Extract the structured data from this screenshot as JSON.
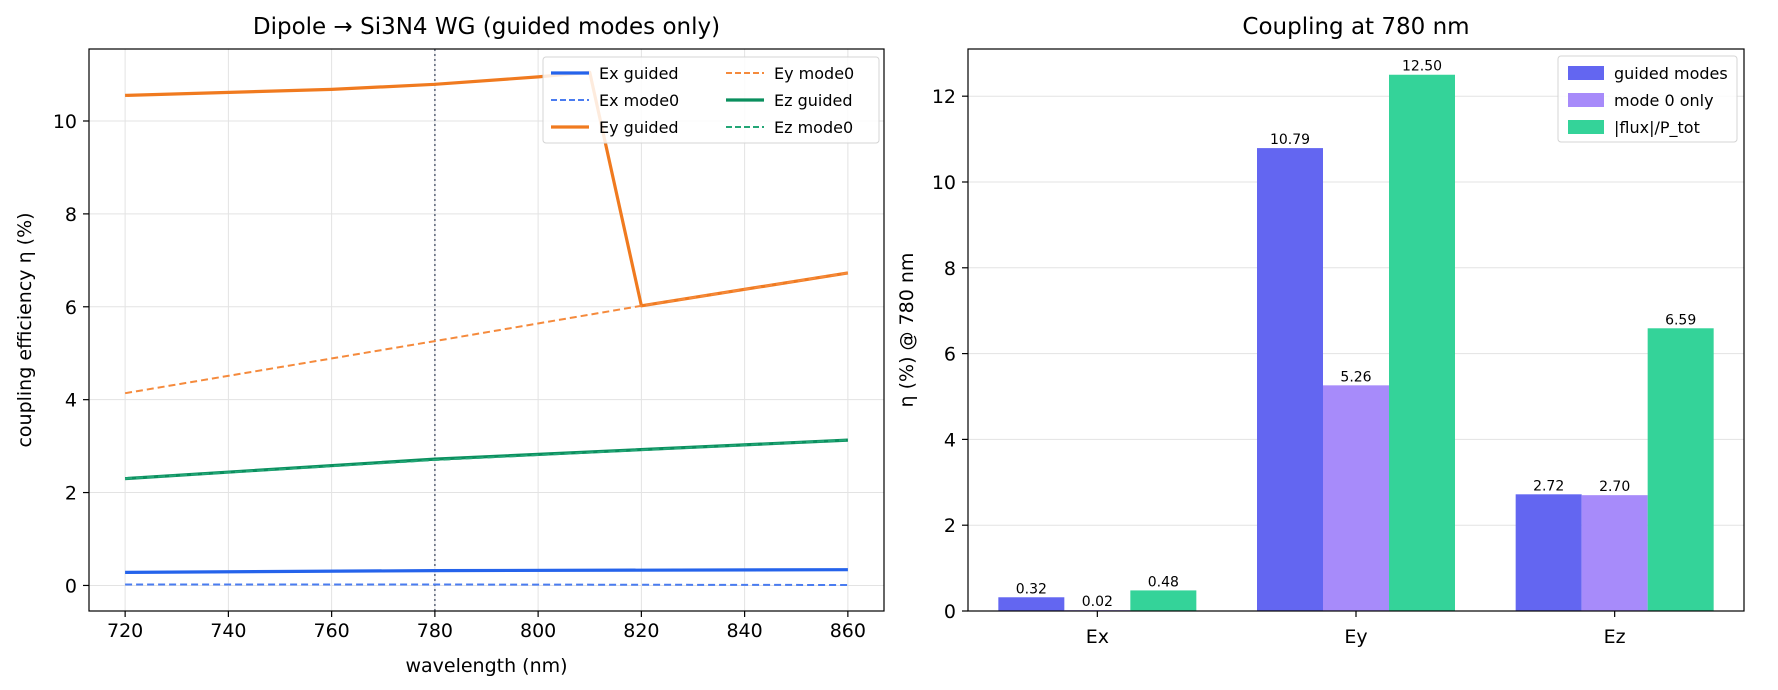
{
  "chart_data": [
    {
      "type": "line",
      "title": "Dipole → Si3N4 WG (guided modes only)",
      "xlabel": "wavelength (nm)",
      "ylabel": "coupling efficiency η (%)",
      "xlim": [
        713,
        867
      ],
      "ylim": [
        -0.55,
        11.55
      ],
      "xticks": [
        720,
        740,
        760,
        780,
        800,
        820,
        840,
        860
      ],
      "yticks": [
        0,
        2,
        4,
        6,
        8,
        10
      ],
      "grid": true,
      "vline": 780,
      "legend_position": "top-right",
      "series": [
        {
          "name": "Ex guided",
          "color": "#2563eb",
          "style": "solid",
          "width": 3.2,
          "x": [
            720,
            780,
            860
          ],
          "y": [
            0.28,
            0.32,
            0.34
          ]
        },
        {
          "name": "Ex mode0",
          "color": "#4a7cf0",
          "style": "dashed",
          "width": 2,
          "x": [
            720,
            780,
            860
          ],
          "y": [
            0.02,
            0.02,
            0.01
          ]
        },
        {
          "name": "Ey guided",
          "color": "#f07a1f",
          "style": "solid",
          "width": 3.2,
          "x": [
            720,
            760,
            780,
            800,
            810,
            820,
            860
          ],
          "y": [
            10.55,
            10.68,
            10.79,
            10.95,
            11.05,
            6.02,
            6.73
          ]
        },
        {
          "name": "Ey mode0",
          "color": "#f58a3c",
          "style": "dashed",
          "width": 2,
          "x": [
            720,
            780,
            820,
            860
          ],
          "y": [
            4.14,
            5.26,
            6.02,
            6.73
          ]
        },
        {
          "name": "Ez guided",
          "color": "#0a8f5e",
          "style": "solid",
          "width": 3.2,
          "x": [
            720,
            780,
            860
          ],
          "y": [
            2.3,
            2.72,
            3.13
          ]
        },
        {
          "name": "Ez mode0",
          "color": "#23a676",
          "style": "dashed",
          "width": 2,
          "x": [
            720,
            780,
            860
          ],
          "y": [
            2.3,
            2.7,
            3.13
          ]
        }
      ]
    },
    {
      "type": "bar",
      "title": "Coupling at 780 nm",
      "xlabel": "",
      "ylabel": "η (%) @ 780 nm",
      "categories": [
        "Ex",
        "Ey",
        "Ez"
      ],
      "ylim": [
        0,
        13.1
      ],
      "yticks": [
        0,
        2,
        4,
        6,
        8,
        10,
        12
      ],
      "grid": true,
      "legend_position": "top-right",
      "series": [
        {
          "name": "guided modes",
          "color": "#6366f1",
          "values": [
            0.32,
            10.79,
            2.72
          ],
          "labels": [
            "0.32",
            "10.79",
            "2.72"
          ]
        },
        {
          "name": "mode 0 only",
          "color": "#a78bfa",
          "values": [
            0.02,
            5.26,
            2.7
          ],
          "labels": [
            "0.02",
            "5.26",
            "2.70"
          ]
        },
        {
          "name": "|flux|/P_tot",
          "color": "#34d399",
          "values": [
            0.48,
            12.5,
            6.59
          ],
          "labels": [
            "0.48",
            "12.50",
            "6.59"
          ]
        }
      ]
    }
  ]
}
